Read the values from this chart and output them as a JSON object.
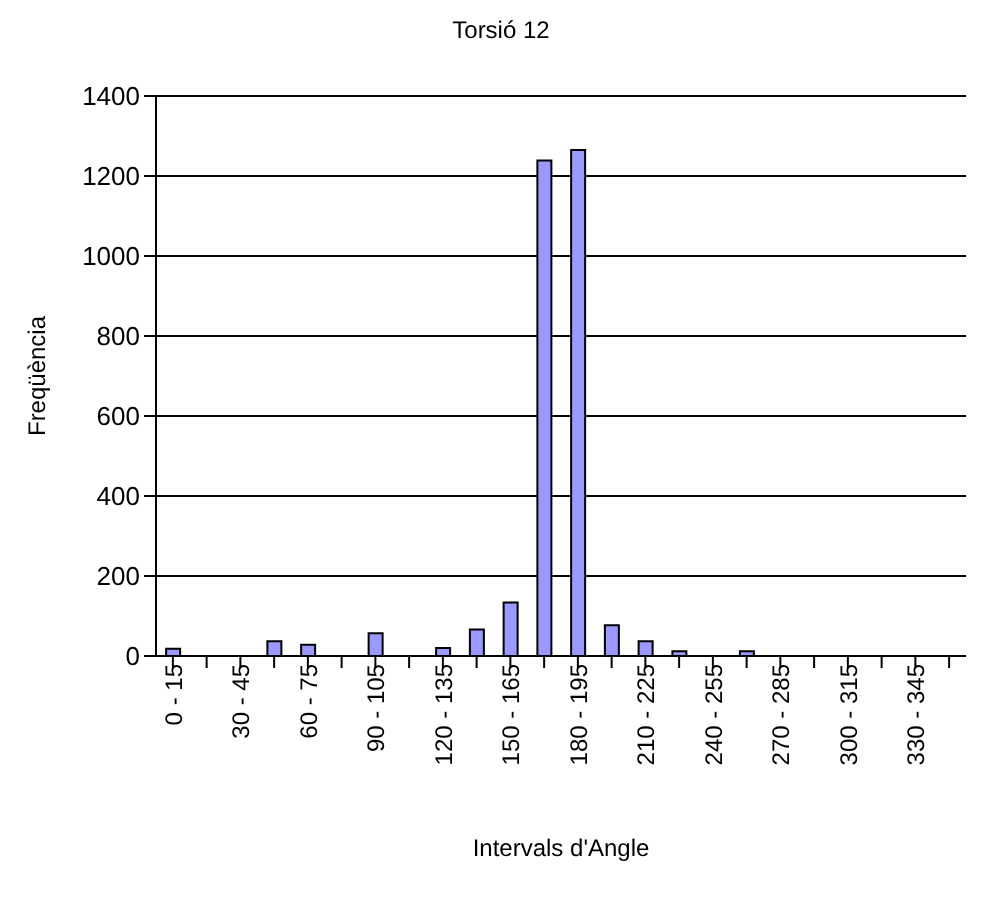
{
  "chart_data": {
    "type": "bar",
    "title": "Torsió 12",
    "xlabel": "Intervals d'Angle",
    "ylabel": "Freqüència",
    "categories": [
      "0 - 15",
      null,
      "30 - 45",
      null,
      "60 - 75",
      null,
      "90 - 105",
      null,
      "120 - 135",
      null,
      "150 - 165",
      null,
      "180 - 195",
      null,
      "210 - 225",
      null,
      "240 - 255",
      null,
      "270 - 285",
      null,
      "300 - 315",
      null,
      "330 - 345",
      null
    ],
    "values": [
      18,
      0,
      0,
      37,
      28,
      0,
      57,
      0,
      20,
      66,
      134,
      1239,
      1265,
      77,
      37,
      12,
      0,
      12,
      0,
      0,
      0,
      0,
      0,
      0
    ],
    "color": "#9999ff",
    "ylim": [
      0,
      1400
    ],
    "yticks": [
      0,
      200,
      400,
      600,
      800,
      1000,
      1200,
      1400
    ],
    "grid": "y"
  }
}
